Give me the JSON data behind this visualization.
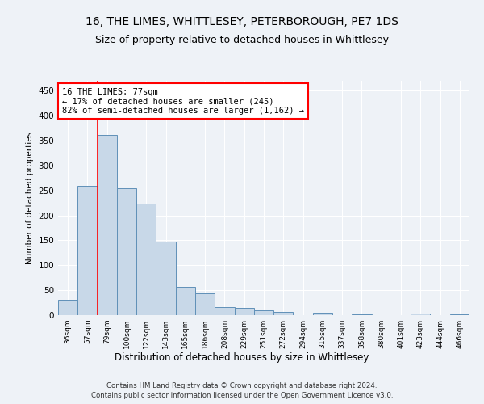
{
  "title1": "16, THE LIMES, WHITTLESEY, PETERBOROUGH, PE7 1DS",
  "title2": "Size of property relative to detached houses in Whittlesey",
  "xlabel": "Distribution of detached houses by size in Whittlesey",
  "ylabel": "Number of detached properties",
  "categories": [
    "36sqm",
    "57sqm",
    "79sqm",
    "100sqm",
    "122sqm",
    "143sqm",
    "165sqm",
    "186sqm",
    "208sqm",
    "229sqm",
    "251sqm",
    "272sqm",
    "294sqm",
    "315sqm",
    "337sqm",
    "358sqm",
    "380sqm",
    "401sqm",
    "423sqm",
    "444sqm",
    "466sqm"
  ],
  "values": [
    30,
    260,
    362,
    255,
    224,
    148,
    57,
    44,
    17,
    15,
    10,
    7,
    0,
    5,
    0,
    2,
    0,
    0,
    3,
    0,
    2
  ],
  "bar_color": "#c8d8e8",
  "bar_edge_color": "#6090b8",
  "highlight_line_index": 2,
  "annotation_line1": "16 THE LIMES: 77sqm",
  "annotation_line2": "← 17% of detached houses are smaller (245)",
  "annotation_line3": "82% of semi-detached houses are larger (1,162) →",
  "annotation_box_color": "white",
  "annotation_box_edge": "red",
  "vline_color": "red",
  "ylim": [
    0,
    470
  ],
  "yticks": [
    0,
    50,
    100,
    150,
    200,
    250,
    300,
    350,
    400,
    450
  ],
  "footer1": "Contains HM Land Registry data © Crown copyright and database right 2024.",
  "footer2": "Contains public sector information licensed under the Open Government Licence v3.0.",
  "bg_color": "#eef2f7",
  "grid_color": "#ffffff",
  "title1_fontsize": 10,
  "title2_fontsize": 9
}
